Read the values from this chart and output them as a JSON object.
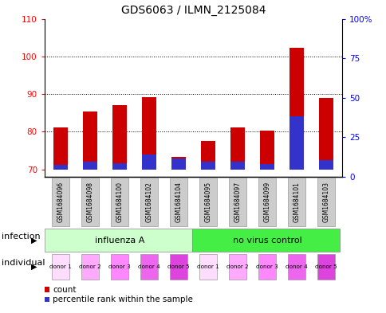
{
  "title": "GDS6063 / ILMN_2125084",
  "samples": [
    "GSM1684096",
    "GSM1684098",
    "GSM1684100",
    "GSM1684102",
    "GSM1684104",
    "GSM1684095",
    "GSM1684097",
    "GSM1684099",
    "GSM1684101",
    "GSM1684103"
  ],
  "counts": [
    81.2,
    85.3,
    87.0,
    89.2,
    73.2,
    77.5,
    81.2,
    80.2,
    102.3,
    89.0
  ],
  "percentile_ranks_pct": [
    3.0,
    5.0,
    4.0,
    10.0,
    7.0,
    5.0,
    5.0,
    3.5,
    35.0,
    6.0
  ],
  "baseline": 70,
  "ylim_left": [
    68,
    110
  ],
  "ylim_right": [
    0,
    100
  ],
  "yticks_left": [
    70,
    80,
    90,
    100,
    110
  ],
  "yticks_right": [
    0,
    25,
    50,
    75,
    100
  ],
  "yticklabels_right": [
    "0",
    "25",
    "50",
    "75",
    "100%"
  ],
  "bar_color_red": "#cc0000",
  "bar_color_blue": "#3333cc",
  "bar_width": 0.5,
  "infection_groups": [
    {
      "label": "influenza A",
      "start": 0,
      "end": 5,
      "color": "#ccffcc"
    },
    {
      "label": "no virus control",
      "start": 5,
      "end": 10,
      "color": "#44ee44"
    }
  ],
  "individual_labels": [
    "donor 1",
    "donor 2",
    "donor 3",
    "donor 4",
    "donor 5",
    "donor 1",
    "donor 2",
    "donor 3",
    "donor 4",
    "donor 5"
  ],
  "individual_colors": [
    "#ffddff",
    "#ffaaff",
    "#ff88ff",
    "#ee66ee",
    "#dd44dd",
    "#ffddff",
    "#ffaaff",
    "#ff88ff",
    "#ee66ee",
    "#dd44dd"
  ],
  "bg_sample_color": "#cccccc",
  "grid_color": "#000000",
  "legend_count_label": "count",
  "legend_pct_label": "percentile rank within the sample",
  "infection_label": "infection",
  "individual_label": "individual"
}
